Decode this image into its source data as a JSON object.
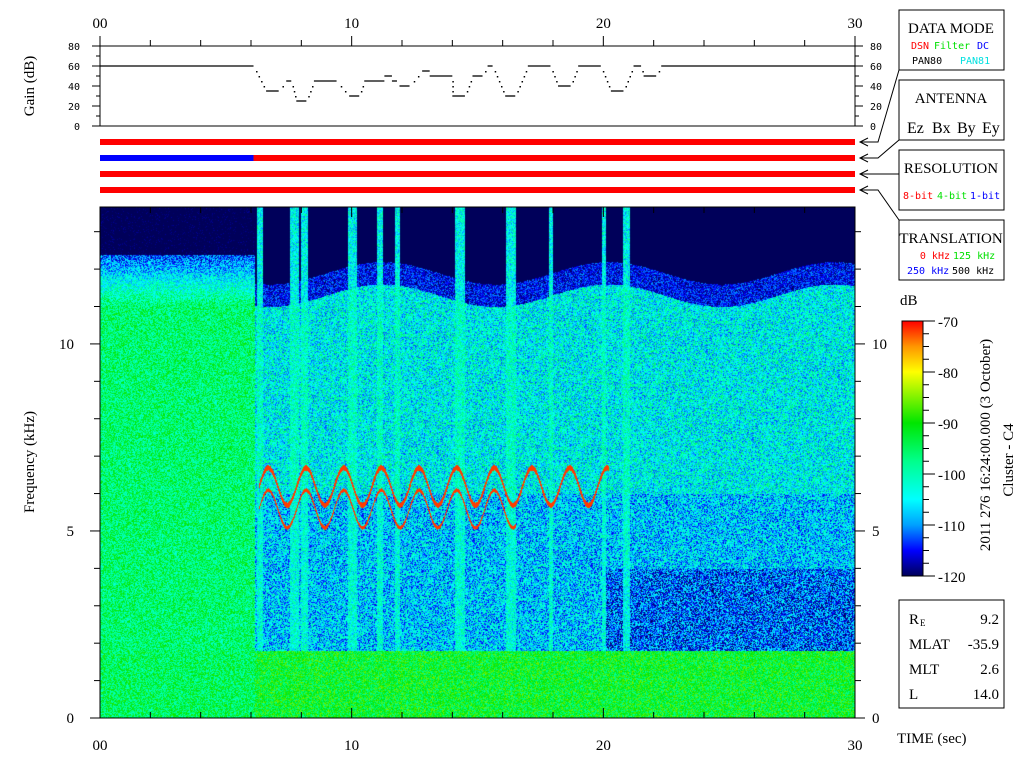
{
  "chart_data": {
    "type": "heatmap",
    "title": "",
    "xlabel": "TIME (sec)",
    "ylabel": "Frequency (kHz)",
    "xlim": [
      0,
      30
    ],
    "ylim": [
      0,
      13.66
    ],
    "x_ticks": [
      "00",
      "10",
      "20",
      "30"
    ],
    "y_ticks": [
      "0",
      "5",
      "10"
    ],
    "colorbar": {
      "label": "dB",
      "range": [
        -120,
        -70
      ],
      "ticks": [
        "-70",
        "-80",
        "-90",
        "-100",
        "-110",
        "-120"
      ],
      "colormap": "jet"
    },
    "gain_panel": {
      "ylabel": "Gain (dB)",
      "ylim": [
        0,
        80
      ],
      "y_ticks": [
        "0",
        "20",
        "40",
        "60",
        "80"
      ],
      "segments": [
        [
          0,
          6.1,
          60
        ],
        [
          6.6,
          7.1,
          35
        ],
        [
          7.4,
          7.6,
          45
        ],
        [
          7.8,
          8.2,
          25
        ],
        [
          8.5,
          9.4,
          45
        ],
        [
          9.9,
          10.3,
          30
        ],
        [
          10.5,
          11.3,
          45
        ],
        [
          11.3,
          11.6,
          50
        ],
        [
          11.6,
          11.8,
          45
        ],
        [
          11.9,
          12.3,
          40
        ],
        [
          12.8,
          13.1,
          55
        ],
        [
          13.1,
          14.0,
          50
        ],
        [
          14.0,
          14.5,
          30
        ],
        [
          14.8,
          15.2,
          50
        ],
        [
          15.4,
          15.6,
          60
        ],
        [
          16.1,
          16.5,
          30
        ],
        [
          17.0,
          17.9,
          60
        ],
        [
          18.2,
          18.7,
          40
        ],
        [
          19.0,
          19.9,
          60
        ],
        [
          20.3,
          20.8,
          35
        ],
        [
          21.2,
          21.5,
          60
        ],
        [
          21.6,
          22.1,
          50
        ],
        [
          22.3,
          30,
          60
        ]
      ]
    },
    "status_bars": [
      {
        "segments": [
          [
            0,
            30,
            "#ff0000"
          ]
        ]
      },
      {
        "segments": [
          [
            0,
            6.1,
            "#0000ff"
          ],
          [
            6.1,
            30,
            "#ff0000"
          ]
        ]
      },
      {
        "segments": [
          [
            0,
            30,
            "#ff0000"
          ]
        ]
      },
      {
        "segments": [
          [
            0,
            30,
            "#ff0000"
          ]
        ]
      }
    ]
  },
  "caption": {
    "date": "2011 276 16:24:00.000 (3 October)",
    "spacecraft": "Cluster - C4"
  },
  "legend_boxes": {
    "data_mode": {
      "title": "DATA MODE",
      "items": [
        {
          "t": "DSN",
          "c": "#ff0000"
        },
        {
          "t": "Filter",
          "c": "#00e000"
        },
        {
          "t": "DC",
          "c": "#0000ff"
        },
        {
          "t": "PAN80",
          "c": "#000000"
        },
        {
          "t": "PAN81",
          "c": "#00e0e0"
        }
      ]
    },
    "antenna": {
      "title": "ANTENNA",
      "items": [
        {
          "t": "Ez",
          "c": "#ff0000"
        },
        {
          "t": "Bx",
          "c": "#00e000"
        },
        {
          "t": "By",
          "c": "#0000ff"
        },
        {
          "t": "Ey",
          "c": "#000000"
        }
      ]
    },
    "resolution": {
      "title": "RESOLUTION",
      "items": [
        {
          "t": "8-bit",
          "c": "#ff0000"
        },
        {
          "t": "4-bit",
          "c": "#00e000"
        },
        {
          "t": "1-bit",
          "c": "#0000ff"
        }
      ]
    },
    "translation": {
      "title": "TRANSLATION",
      "items": [
        {
          "t": "0 kHz",
          "c": "#ff0000"
        },
        {
          "t": "125 kHz",
          "c": "#00e000"
        },
        {
          "t": "250 kHz",
          "c": "#0000ff"
        },
        {
          "t": "500 kHz",
          "c": "#000000"
        }
      ]
    }
  },
  "orbit": {
    "rows": [
      {
        "label": "R",
        "sub": "E",
        "value": "9.2"
      },
      {
        "label": "MLAT",
        "value": "-35.9"
      },
      {
        "label": "MLT",
        "value": "2.6"
      },
      {
        "label": "L",
        "value": "14.0"
      }
    ]
  }
}
